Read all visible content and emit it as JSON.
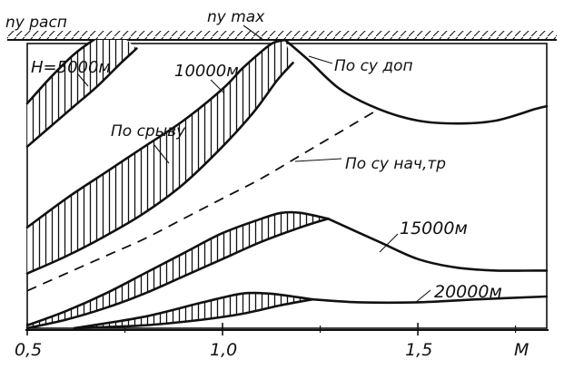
{
  "chart_data": {
    "type": "line",
    "title": "",
    "xlabel": "M",
    "ylabel": "",
    "x_ticks": [
      "0,5",
      "1,0",
      "1,5"
    ],
    "x_tick_values": [
      0.5,
      1.0,
      1.5
    ],
    "xlim": [
      0.5,
      1.83
    ],
    "grid": false,
    "legend": "none",
    "y_axis_labels": {
      "n_y_rasp": "nу расп",
      "n_y_max": "nу max"
    },
    "series": [
      {
        "name": "H=5000м",
        "upper": {
          "x": [
            0.5,
            0.56,
            0.62,
            0.67,
            0.7,
            0.72
          ],
          "y": [
            0.78,
            0.87,
            0.95,
            1.0,
            1.02,
            1.04
          ]
        },
        "lower": {
          "x": [
            0.5,
            0.56,
            0.62,
            0.68,
            0.74,
            0.78
          ],
          "y": [
            0.63,
            0.7,
            0.77,
            0.84,
            0.92,
            0.97
          ]
        }
      },
      {
        "name": "10000м",
        "upper": {
          "x": [
            0.5,
            0.6,
            0.7,
            0.8,
            0.9,
            1.0,
            1.05,
            1.1,
            1.13,
            1.16
          ],
          "y": [
            0.35,
            0.45,
            0.54,
            0.63,
            0.72,
            0.83,
            0.9,
            0.96,
            0.99,
            1.0
          ]
        },
        "lower": {
          "x": [
            0.5,
            0.6,
            0.7,
            0.8,
            0.9,
            1.0,
            1.08,
            1.14,
            1.18
          ],
          "y": [
            0.19,
            0.25,
            0.32,
            0.4,
            0.5,
            0.63,
            0.75,
            0.86,
            0.92
          ]
        }
      },
      {
        "name": "15000м",
        "upper": {
          "x": [
            0.5,
            0.6,
            0.7,
            0.8,
            0.9,
            1.0,
            1.1,
            1.15,
            1.2,
            1.27
          ],
          "y": [
            0.01,
            0.06,
            0.12,
            0.19,
            0.26,
            0.33,
            0.38,
            0.4,
            0.4,
            0.38
          ]
        },
        "lower": {
          "x": [
            0.5,
            0.6,
            0.7,
            0.8,
            0.9,
            1.0,
            1.1,
            1.2,
            1.27
          ],
          "y": [
            0.0,
            0.03,
            0.07,
            0.12,
            0.18,
            0.24,
            0.3,
            0.35,
            0.38
          ]
        },
        "beyond": {
          "x": [
            1.27,
            1.4,
            1.5,
            1.6,
            1.7,
            1.8,
            1.83
          ],
          "y": [
            0.38,
            0.3,
            0.24,
            0.21,
            0.2,
            0.2,
            0.2
          ]
        }
      },
      {
        "name": "20000м",
        "upper": {
          "x": [
            0.62,
            0.8,
            0.95,
            1.05,
            1.12,
            1.18,
            1.23
          ],
          "y": [
            0.0,
            0.04,
            0.09,
            0.12,
            0.12,
            0.11,
            0.1
          ]
        },
        "lower": {
          "x": [
            0.62,
            0.8,
            0.95,
            1.05,
            1.15,
            1.23
          ],
          "y": [
            0.0,
            0.01,
            0.03,
            0.05,
            0.08,
            0.1
          ]
        },
        "beyond": {
          "x": [
            1.23,
            1.35,
            1.5,
            1.65,
            1.83
          ],
          "y": [
            0.1,
            0.09,
            0.09,
            0.1,
            0.11
          ]
        }
      }
    ],
    "boundaries": [
      {
        "name": "По су доп",
        "style": "solid",
        "x": [
          1.16,
          1.22,
          1.3,
          1.4,
          1.5,
          1.6,
          1.7,
          1.8,
          1.83
        ],
        "y": [
          1.0,
          0.93,
          0.83,
          0.76,
          0.72,
          0.71,
          0.72,
          0.76,
          0.77
        ]
      },
      {
        "name": "По су нач,тр",
        "style": "dashed",
        "x": [
          0.5,
          0.6,
          0.7,
          0.8,
          0.9,
          1.0,
          1.1,
          1.2,
          1.3,
          1.4
        ],
        "y": [
          0.13,
          0.19,
          0.25,
          0.31,
          0.38,
          0.45,
          0.52,
          0.6,
          0.68,
          0.76
        ]
      }
    ],
    "annotations": [
      "По срыву"
    ]
  },
  "labels": {
    "h5000": "H=5000м",
    "h10000": "10000м",
    "h15000": "15000м",
    "h20000": "20000м",
    "po_sryvu": "По срыву",
    "po_su_dop": "По су доп",
    "po_su_nach": "По су нач,тр",
    "n_y_rasp": "nу расп",
    "n_y_max": "nу max"
  },
  "colors": {
    "ink": "#111111",
    "background": "#ffffff"
  }
}
